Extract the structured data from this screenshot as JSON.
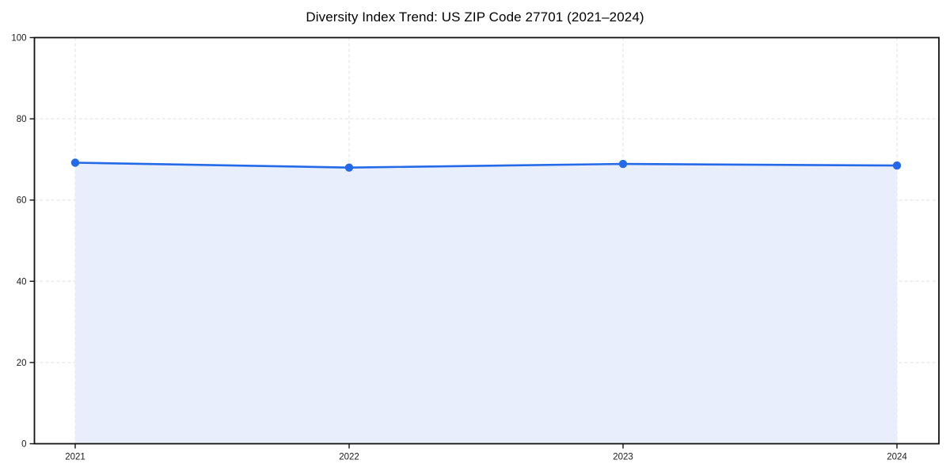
{
  "figure": {
    "title": "Diversity Index Trend: US ZIP Code 27701 (2021–2024)"
  },
  "chart_data": {
    "type": "area",
    "title": "Diversity Index Trend: US ZIP Code 27701 (2021–2024)",
    "xlabel": "",
    "ylabel": "",
    "categories": [
      "2021",
      "2022",
      "2023",
      "2024"
    ],
    "series": [
      {
        "name": "Diversity Index",
        "values": [
          69.2,
          68.0,
          68.9,
          68.5
        ]
      }
    ],
    "ylim": [
      0,
      100
    ],
    "yticks": [
      0,
      20,
      40,
      60,
      80,
      100
    ],
    "grid": "dashed-both-axes",
    "legend_position": "none",
    "marker": "circle",
    "colors": {
      "line": "#2469e8",
      "marker": "#2469e8",
      "area_fill": "#e8eefb",
      "grid": "#e0e0e0",
      "spine": "#111111",
      "tick_text": "#1a1a1a",
      "background": "#ffffff"
    }
  }
}
